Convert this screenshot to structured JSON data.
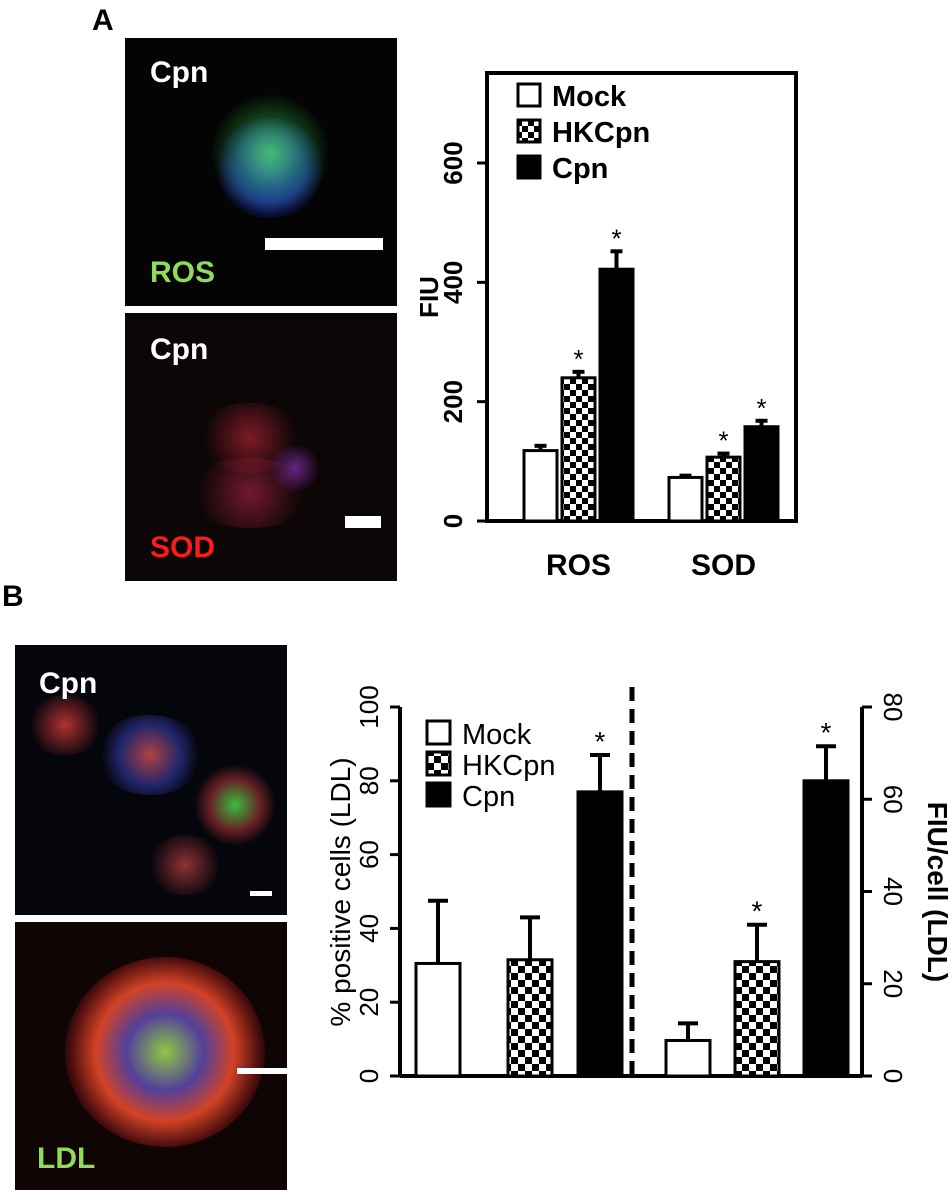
{
  "panels": {
    "a": {
      "label": "A",
      "images": [
        {
          "organism": "Cpn",
          "stain": "ROS",
          "stain_color": "#8fdc5a"
        },
        {
          "organism": "Cpn",
          "stain": "SOD",
          "stain_color": "#ff1a1a"
        }
      ]
    },
    "b": {
      "label": "B",
      "images": [
        {
          "organism": "Cpn",
          "stain": ""
        },
        {
          "organism": "",
          "stain": "LDL",
          "stain_color": "#8fdc5a"
        }
      ]
    }
  },
  "chart_data": [
    {
      "type": "bar",
      "panel": "A",
      "categories": [
        "ROS",
        "SOD"
      ],
      "ylabel": "FIU",
      "xlabel": "",
      "ylim": [
        0,
        650
      ],
      "yticks": [
        "0",
        "200",
        "400",
        "600"
      ],
      "legend_position": "top-left",
      "series": [
        {
          "name": "Mock",
          "pattern": "open",
          "values": [
            118,
            73
          ],
          "errors": [
            8,
            3
          ],
          "significant": [
            false,
            false
          ]
        },
        {
          "name": "HKCpn",
          "pattern": "checker",
          "values": [
            240,
            107
          ],
          "errors": [
            10,
            6
          ],
          "significant": [
            true,
            true
          ]
        },
        {
          "name": "Cpn",
          "pattern": "solid",
          "values": [
            422,
            158
          ],
          "errors": [
            30,
            10
          ],
          "significant": [
            true,
            true
          ]
        }
      ],
      "annotation": "*"
    },
    {
      "type": "bar",
      "panel": "B",
      "groups": [
        {
          "ylabel": "% positive cells (LDL)",
          "axis": "left",
          "ylim": [
            0,
            100
          ],
          "yticks": [
            "0",
            "20",
            "40",
            "60",
            "80",
            "100"
          ],
          "values": [
            30.5,
            31.5,
            77
          ],
          "errors": [
            17,
            11.5,
            10
          ],
          "significant": [
            false,
            false,
            true
          ]
        },
        {
          "ylabel": "FIU/cell (LDL)",
          "axis": "right",
          "ylim": [
            0,
            80
          ],
          "yticks": [
            "0",
            "20",
            "40",
            "60",
            "80"
          ],
          "values": [
            7.7,
            24.8,
            64
          ],
          "errors": [
            3.7,
            8,
            7.5
          ],
          "significant": [
            false,
            true,
            true
          ]
        }
      ],
      "series": [
        {
          "name": "Mock",
          "pattern": "open"
        },
        {
          "name": "HKCpn",
          "pattern": "checker"
        },
        {
          "name": "Cpn",
          "pattern": "solid"
        }
      ],
      "legend_position": "top-left",
      "divider": "dashed",
      "annotation": "*"
    }
  ]
}
